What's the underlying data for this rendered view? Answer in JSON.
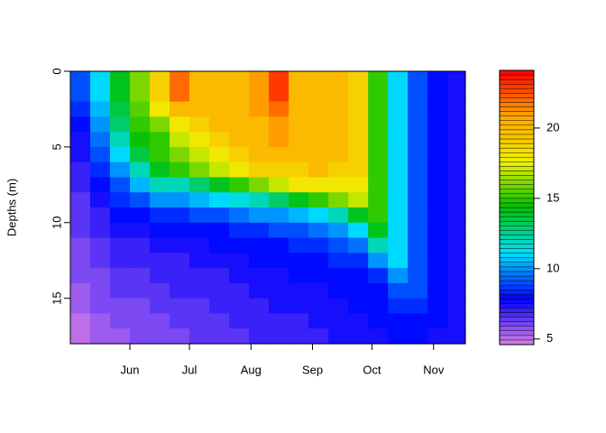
{
  "chart_data": {
    "type": "heatmap",
    "y_label": "Depths (m)",
    "xlim": [
      122,
      321
    ],
    "xticks": [
      {
        "value": 152,
        "label": "Jun"
      },
      {
        "value": 182,
        "label": "Jul"
      },
      {
        "value": 213,
        "label": "Aug"
      },
      {
        "value": 244,
        "label": "Sep"
      },
      {
        "value": 274,
        "label": "Oct"
      },
      {
        "value": 305,
        "label": "Nov"
      }
    ],
    "ylim": [
      18,
      0
    ],
    "yticks": [
      0,
      5,
      10,
      15
    ],
    "zlim": [
      4.6,
      24.1
    ],
    "zticks": [
      5,
      10,
      15,
      20
    ],
    "colors": [
      "#d97fe6",
      "#0000ff",
      "#00e0ff",
      "#00c000",
      "#f0f000",
      "#ffa500",
      "#ff0000"
    ],
    "x": [
      127,
      137,
      147,
      157,
      167,
      177,
      187,
      197,
      207,
      217,
      227,
      237,
      247,
      257,
      267,
      277,
      287,
      297,
      307,
      317
    ],
    "y": [
      0.5,
      1.5,
      2.5,
      3.5,
      4.5,
      5.5,
      6.5,
      7.5,
      8.5,
      9.5,
      10.5,
      11.5,
      12.5,
      13.5,
      14.5,
      15.5,
      16.5,
      17.5
    ],
    "z": [
      [
        9,
        9,
        8.5,
        8,
        7.5,
        7.5,
        7,
        7,
        6.5,
        6.5,
        6.5,
        6,
        6,
        6,
        5.5,
        5.5,
        5,
        5
      ],
      [
        11,
        11,
        10.5,
        10,
        9.5,
        9,
        8.5,
        8,
        7.5,
        7,
        7,
        6.5,
        6.5,
        6,
        6,
        6,
        5.5,
        5.5
      ],
      [
        14,
        14,
        13.5,
        13,
        12,
        11,
        10,
        9,
        8.5,
        8,
        7.5,
        7,
        7,
        6.5,
        6.5,
        6,
        6,
        5.5
      ],
      [
        16,
        16,
        15.5,
        15,
        14.5,
        13.5,
        12,
        10.5,
        9,
        8,
        7.5,
        7,
        7,
        6.5,
        6.5,
        6,
        6,
        6
      ],
      [
        19,
        19,
        18,
        16,
        15,
        15,
        14,
        12,
        10,
        8.5,
        8,
        7.5,
        7,
        7,
        6.5,
        6.5,
        6,
        6
      ],
      [
        22,
        22,
        20,
        18,
        17,
        16,
        15,
        12,
        10,
        8.5,
        8,
        7.5,
        7,
        7,
        7,
        6.5,
        6.5,
        6
      ],
      [
        20,
        20,
        20,
        19,
        18,
        17,
        16,
        13,
        10.5,
        9,
        8,
        7.5,
        7.5,
        7,
        7,
        6.5,
        6.5,
        6.5
      ],
      [
        20,
        20,
        20,
        20,
        19,
        18,
        17,
        14,
        11,
        9,
        8,
        8,
        7.5,
        7,
        7,
        7,
        6.5,
        6.5
      ],
      [
        20,
        20,
        20,
        20,
        20,
        19,
        18,
        15,
        11.5,
        9.5,
        8.5,
        8,
        7.5,
        7.5,
        7,
        7,
        7,
        6.5
      ],
      [
        21,
        21,
        21,
        20,
        20,
        20,
        19,
        16,
        12,
        10,
        8.5,
        8,
        8,
        7.5,
        7.5,
        7,
        7,
        7
      ],
      [
        23,
        23,
        22,
        21,
        21,
        20,
        19,
        17,
        13,
        10,
        9,
        8,
        8,
        7.5,
        7.5,
        7.5,
        7,
        7
      ],
      [
        20,
        20,
        20,
        20,
        20,
        20,
        19,
        18,
        14,
        10.5,
        9,
        8.5,
        8,
        8,
        7.5,
        7.5,
        7,
        7
      ],
      [
        20,
        20,
        20,
        20,
        20,
        20,
        20,
        18,
        15,
        11,
        9.5,
        8.5,
        8,
        8,
        7.5,
        7.5,
        7.5,
        7
      ],
      [
        20,
        20,
        20,
        20,
        20,
        20,
        19,
        18,
        16,
        12,
        10,
        9,
        8.5,
        8,
        8,
        7.5,
        7.5,
        7.5
      ],
      [
        19,
        19,
        19,
        19,
        19,
        19,
        19,
        18,
        17,
        14,
        11,
        9.5,
        8.5,
        8,
        8,
        8,
        7.5,
        7.5
      ],
      [
        15,
        15,
        15,
        15,
        15,
        15,
        15,
        15,
        15,
        15,
        14,
        12,
        10,
        8.5,
        8,
        8,
        8,
        7.5
      ],
      [
        11,
        11,
        11,
        11,
        11,
        11,
        11,
        11,
        11,
        11,
        11,
        11,
        11,
        10,
        9,
        8.5,
        8,
        8
      ],
      [
        9,
        9,
        9,
        9,
        9,
        9,
        9,
        9,
        9,
        9,
        9,
        9,
        9,
        9,
        9,
        8.5,
        8,
        8
      ],
      [
        8,
        8,
        8,
        8,
        8,
        8,
        8,
        8,
        8,
        8,
        8,
        8,
        8,
        8,
        8,
        8,
        8,
        7.5
      ],
      [
        7.5,
        7.5,
        7.5,
        7.5,
        7.5,
        7.5,
        7.5,
        7.5,
        7.5,
        7.5,
        7.5,
        7.5,
        7.5,
        7.5,
        7.5,
        7.5,
        7.5,
        7.5
      ]
    ]
  }
}
